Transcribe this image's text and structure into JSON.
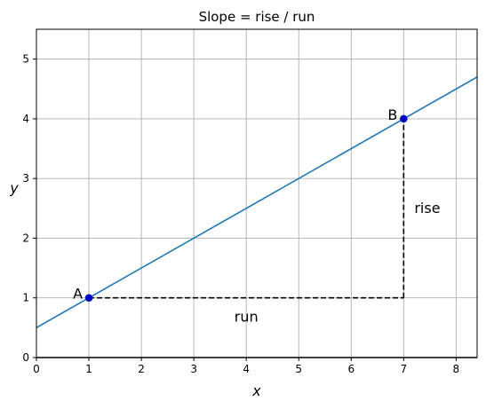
{
  "chart_data": {
    "type": "line",
    "title": "Slope = rise / run",
    "xlabel": "x",
    "ylabel": "y",
    "xlim": [
      0,
      8.4
    ],
    "ylim": [
      0,
      5.5
    ],
    "xticks": [
      "0",
      "1",
      "2",
      "3",
      "4",
      "5",
      "6",
      "7",
      "8"
    ],
    "yticks": [
      "0",
      "1",
      "2",
      "3",
      "4",
      "5"
    ],
    "grid": true,
    "series": [
      {
        "x": [
          0,
          8.4
        ],
        "y": [
          0.5,
          4.7
        ]
      }
    ],
    "points": [
      {
        "label": "A",
        "x": 1,
        "y": 1
      },
      {
        "label": "B",
        "x": 7,
        "y": 4
      }
    ],
    "annotations": {
      "run_label": "run",
      "rise_label": "rise"
    },
    "colors": {
      "line": "#1f77b4",
      "points": "#0000cc",
      "grid": "#b0b0b0",
      "guides": "#000000"
    }
  }
}
